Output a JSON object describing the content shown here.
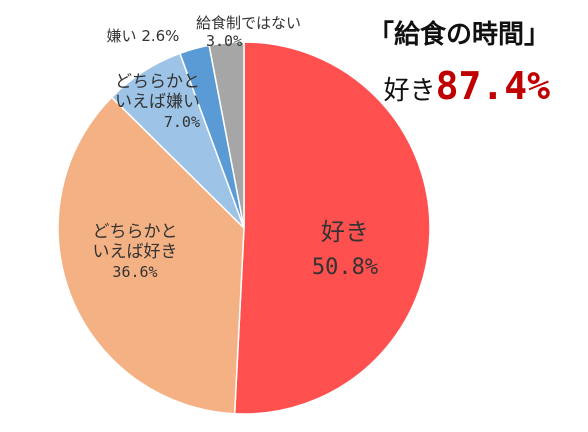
{
  "headline": {
    "title": "「給食の時間」",
    "summary_label": "好き",
    "summary_value": "87.4%"
  },
  "chart_data": {
    "type": "pie",
    "slices": [
      {
        "label": "好き",
        "value": 50.8,
        "display": "50.8%",
        "color": "#ff5050"
      },
      {
        "label": "どちらかといえば好き",
        "value": 36.6,
        "display": "36.6%",
        "color": "#f4b183"
      },
      {
        "label": "どちらかといえば嫌い",
        "value": 7.0,
        "display": "7.0%",
        "color": "#9dc3e6"
      },
      {
        "label": "嫌い",
        "value": 2.6,
        "display": "2.6%",
        "color": "#5b9bd5"
      },
      {
        "label": "給食制ではない",
        "value": 3.0,
        "display": "3.0%",
        "color": "#a6a6a6"
      }
    ]
  },
  "labels": {
    "like_line1": "好き",
    "like_pct": "50.8%",
    "rather_like_line1": "どちらかと",
    "rather_like_line2": "いえば好き",
    "rather_like_pct": "36.6%",
    "rather_dislike_line1": "どちらかと",
    "rather_dislike_line2": "いえば嫌い",
    "rather_dislike_pct": "7.0%",
    "dislike_text": "嫌い 2.6%",
    "no_lunch_line1": "給食制ではない",
    "no_lunch_pct": "3.0%"
  }
}
